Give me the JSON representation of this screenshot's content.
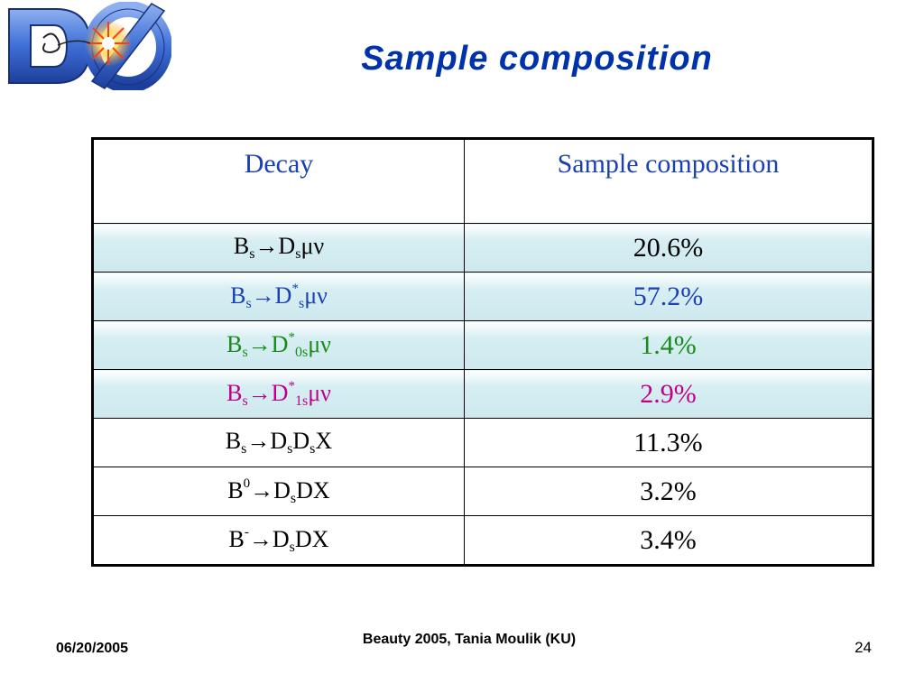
{
  "slide": {
    "title": "Sample composition",
    "logo_text": "DØ"
  },
  "table": {
    "headers": [
      "Decay",
      "Sample composition"
    ],
    "rows": [
      {
        "decay": [
          {
            "t": "B"
          },
          {
            "t": "s",
            "sub": true
          },
          {
            "t": "→D"
          },
          {
            "t": "s",
            "sub": true
          },
          {
            "t": "μν"
          }
        ],
        "value": "20.6%",
        "color": "#000000",
        "shaded": true
      },
      {
        "decay": [
          {
            "t": "B"
          },
          {
            "t": "s",
            "sub": true
          },
          {
            "t": "→D"
          },
          {
            "t": "*",
            "sup": true
          },
          {
            "t": "s",
            "sub": true
          },
          {
            "t": "μν"
          }
        ],
        "value": "57.2%",
        "color": "#1b3fb5",
        "shaded": true
      },
      {
        "decay": [
          {
            "t": "B"
          },
          {
            "t": "s",
            "sub": true
          },
          {
            "t": "→D"
          },
          {
            "t": "*",
            "sup": true
          },
          {
            "t": "0s",
            "sub": true
          },
          {
            "t": "μν"
          }
        ],
        "value": "1.4%",
        "color": "#1a8a1a",
        "shaded": true
      },
      {
        "decay": [
          {
            "t": "B"
          },
          {
            "t": "s",
            "sub": true
          },
          {
            "t": "→D"
          },
          {
            "t": "*",
            "sup": true
          },
          {
            "t": "1s",
            "sub": true
          },
          {
            "t": "μν"
          }
        ],
        "value": "2.9%",
        "color": "#c0008c",
        "shaded": true
      },
      {
        "decay": [
          {
            "t": "B"
          },
          {
            "t": "s",
            "sub": true
          },
          {
            "t": "→D"
          },
          {
            "t": "s",
            "sub": true
          },
          {
            "t": "D"
          },
          {
            "t": "s",
            "sub": true
          },
          {
            "t": "X"
          }
        ],
        "value": "11.3%",
        "color": "#000000",
        "shaded": false
      },
      {
        "decay": [
          {
            "t": "B"
          },
          {
            "t": "0",
            "sup": true
          },
          {
            "t": "→D"
          },
          {
            "t": "s",
            "sub": true
          },
          {
            "t": "DX"
          }
        ],
        "value": "3.2%",
        "color": "#000000",
        "shaded": false
      },
      {
        "decay": [
          {
            "t": "B"
          },
          {
            "t": "-",
            "sup": true
          },
          {
            "t": "→D"
          },
          {
            "t": "s",
            "sub": true
          },
          {
            "t": "DX"
          }
        ],
        "value": "3.4%",
        "color": "#000000",
        "shaded": false
      }
    ]
  },
  "footer": {
    "date": "06/20/2005",
    "center": "Beauty 2005, Tania Moulik (KU)",
    "page": "24"
  }
}
